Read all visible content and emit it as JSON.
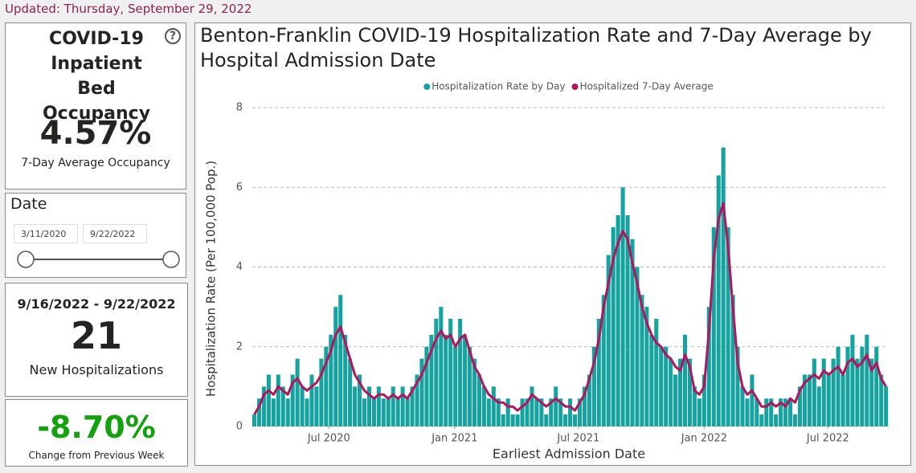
{
  "dashboard": {
    "updated": "Updated: Thursday, September 29, 2022",
    "occupancy": {
      "title": "COVID-19 Inpatient Bed Occupancy",
      "help_icon": "?",
      "value": "4.57%",
      "caption": "7-Day Average Occupancy"
    },
    "date_filter": {
      "label": "Date",
      "start": "3/11/2020",
      "end": "9/22/2022"
    },
    "week_card": {
      "start": "9/16/2022",
      "separator": "-",
      "end": "9/22/2022",
      "value": "21",
      "caption": "New Hospitalizations"
    },
    "change_card": {
      "value": "-8.70%",
      "caption": "Change from Previous Week"
    }
  },
  "chart_data": {
    "type": "bar",
    "title": "Benton-Franklin COVID-19 Hospitalization Rate and 7-Day Average by Hospital Admission Date",
    "x_label": "Earliest Admission Date",
    "y_label": "Hospitalization Rate (Per 100,000 Pop.)",
    "x": [
      "2020-03-11",
      "2020-03-18",
      "2020-03-25",
      "2020-04-01",
      "2020-04-08",
      "2020-04-15",
      "2020-04-22",
      "2020-04-29",
      "2020-05-06",
      "2020-05-13",
      "2020-05-20",
      "2020-05-27",
      "2020-06-03",
      "2020-06-10",
      "2020-06-17",
      "2020-06-24",
      "2020-07-01",
      "2020-07-08",
      "2020-07-15",
      "2020-07-22",
      "2020-07-29",
      "2020-08-05",
      "2020-08-12",
      "2020-08-19",
      "2020-08-26",
      "2020-09-02",
      "2020-09-09",
      "2020-09-16",
      "2020-09-23",
      "2020-09-30",
      "2020-10-07",
      "2020-10-14",
      "2020-10-21",
      "2020-10-28",
      "2020-11-04",
      "2020-11-11",
      "2020-11-18",
      "2020-11-25",
      "2020-12-02",
      "2020-12-09",
      "2020-12-16",
      "2020-12-23",
      "2020-12-30",
      "2021-01-06",
      "2021-01-13",
      "2021-01-20",
      "2021-01-27",
      "2021-02-03",
      "2021-02-10",
      "2021-02-17",
      "2021-02-24",
      "2021-03-03",
      "2021-03-10",
      "2021-03-17",
      "2021-03-24",
      "2021-03-31",
      "2021-04-07",
      "2021-04-14",
      "2021-04-21",
      "2021-04-28",
      "2021-05-05",
      "2021-05-12",
      "2021-05-19",
      "2021-05-26",
      "2021-06-02",
      "2021-06-09",
      "2021-06-16",
      "2021-06-23",
      "2021-06-30",
      "2021-07-07",
      "2021-07-14",
      "2021-07-21",
      "2021-07-28",
      "2021-08-04",
      "2021-08-11",
      "2021-08-18",
      "2021-08-25",
      "2021-09-01",
      "2021-09-08",
      "2021-09-15",
      "2021-09-22",
      "2021-09-29",
      "2021-10-06",
      "2021-10-13",
      "2021-10-20",
      "2021-10-27",
      "2021-11-03",
      "2021-11-10",
      "2021-11-17",
      "2021-11-24",
      "2021-12-01",
      "2021-12-08",
      "2021-12-15",
      "2021-12-22",
      "2021-12-29",
      "2022-01-05",
      "2022-01-12",
      "2022-01-19",
      "2022-01-26",
      "2022-02-02",
      "2022-02-09",
      "2022-02-16",
      "2022-02-23",
      "2022-03-02",
      "2022-03-09",
      "2022-03-16",
      "2022-03-23",
      "2022-03-30",
      "2022-04-06",
      "2022-04-13",
      "2022-04-20",
      "2022-04-27",
      "2022-05-04",
      "2022-05-11",
      "2022-05-18",
      "2022-05-25",
      "2022-06-01",
      "2022-06-08",
      "2022-06-15",
      "2022-06-22",
      "2022-06-29",
      "2022-07-06",
      "2022-07-13",
      "2022-07-20",
      "2022-07-27",
      "2022-08-03",
      "2022-08-10",
      "2022-08-17",
      "2022-08-24",
      "2022-08-31",
      "2022-09-07",
      "2022-09-14",
      "2022-09-21"
    ],
    "series": [
      {
        "name": "Hospitalization Rate by Day",
        "type": "bar",
        "color": "#16a39f",
        "values": [
          0.3,
          0.7,
          1.0,
          1.3,
          0.7,
          1.3,
          1.0,
          0.7,
          1.3,
          1.7,
          1.0,
          0.7,
          1.3,
          1.0,
          1.7,
          2.0,
          2.3,
          3.0,
          3.3,
          2.3,
          1.7,
          1.0,
          1.3,
          0.7,
          1.0,
          0.7,
          1.0,
          0.7,
          0.7,
          1.0,
          0.7,
          1.0,
          0.7,
          1.0,
          1.3,
          1.7,
          2.0,
          2.3,
          2.7,
          3.0,
          2.3,
          2.7,
          2.0,
          2.7,
          2.3,
          2.0,
          1.7,
          1.3,
          1.0,
          0.7,
          1.0,
          0.7,
          0.3,
          0.7,
          0.3,
          0.3,
          0.7,
          0.7,
          1.0,
          0.7,
          0.7,
          0.3,
          0.7,
          1.0,
          0.7,
          0.3,
          0.7,
          0.3,
          0.7,
          1.0,
          1.3,
          2.0,
          2.7,
          3.3,
          4.3,
          5.0,
          5.3,
          6.0,
          5.3,
          4.7,
          4.0,
          3.3,
          3.0,
          2.3,
          2.7,
          2.0,
          2.0,
          1.7,
          1.3,
          1.7,
          2.3,
          1.7,
          1.0,
          0.7,
          1.3,
          3.0,
          5.0,
          6.3,
          7.0,
          5.0,
          3.3,
          2.0,
          1.0,
          0.7,
          1.3,
          0.7,
          0.3,
          0.7,
          0.7,
          0.3,
          0.7,
          0.7,
          0.7,
          0.3,
          1.0,
          1.3,
          1.3,
          1.7,
          1.0,
          1.7,
          1.3,
          1.7,
          2.0,
          1.3,
          2.0,
          2.3,
          1.7,
          2.0,
          2.3,
          1.7,
          2.0,
          1.3,
          1.0
        ]
      },
      {
        "name": "Hospitalized 7-Day Average",
        "type": "line",
        "color": "#b0155e",
        "values": [
          0.3,
          0.5,
          0.8,
          0.9,
          0.8,
          1.0,
          0.9,
          0.8,
          1.1,
          1.2,
          1.0,
          0.9,
          1.0,
          1.1,
          1.3,
          1.6,
          1.9,
          2.3,
          2.5,
          2.1,
          1.7,
          1.3,
          1.1,
          0.9,
          0.8,
          0.7,
          0.8,
          0.8,
          0.7,
          0.8,
          0.7,
          0.8,
          0.7,
          0.9,
          1.1,
          1.3,
          1.6,
          1.9,
          2.2,
          2.4,
          2.2,
          2.3,
          2.0,
          2.2,
          2.3,
          1.9,
          1.5,
          1.3,
          1.0,
          0.8,
          0.7,
          0.6,
          0.6,
          0.5,
          0.5,
          0.4,
          0.5,
          0.6,
          0.8,
          0.7,
          0.6,
          0.5,
          0.6,
          0.7,
          0.6,
          0.5,
          0.5,
          0.4,
          0.6,
          0.8,
          1.2,
          1.6,
          2.2,
          3.0,
          3.6,
          4.2,
          4.6,
          4.9,
          4.7,
          4.1,
          3.6,
          3.0,
          2.6,
          2.3,
          2.1,
          2.0,
          1.8,
          1.7,
          1.5,
          1.4,
          1.8,
          1.5,
          0.9,
          0.8,
          1.0,
          2.4,
          4.2,
          5.2,
          5.6,
          4.5,
          3.0,
          1.6,
          1.0,
          0.8,
          0.9,
          0.7,
          0.5,
          0.5,
          0.6,
          0.5,
          0.6,
          0.5,
          0.7,
          0.6,
          0.9,
          1.1,
          1.2,
          1.3,
          1.2,
          1.4,
          1.3,
          1.4,
          1.5,
          1.3,
          1.6,
          1.7,
          1.5,
          1.6,
          1.8,
          1.4,
          1.6,
          1.2,
          1.0
        ]
      }
    ],
    "xlim": [
      "2020-03-11",
      "2022-09-22"
    ],
    "xticks": [
      {
        "value": "2020-07-01",
        "label": "Jul 2020"
      },
      {
        "value": "2021-01-01",
        "label": "Jan 2021"
      },
      {
        "value": "2021-07-01",
        "label": "Jul 2021"
      },
      {
        "value": "2022-01-01",
        "label": "Jan 2022"
      },
      {
        "value": "2022-07-01",
        "label": "Jul 2022"
      }
    ],
    "ylim": [
      0,
      8
    ],
    "yticks": [
      0,
      2,
      4,
      6,
      8
    ],
    "grid": true,
    "legend": "top"
  }
}
